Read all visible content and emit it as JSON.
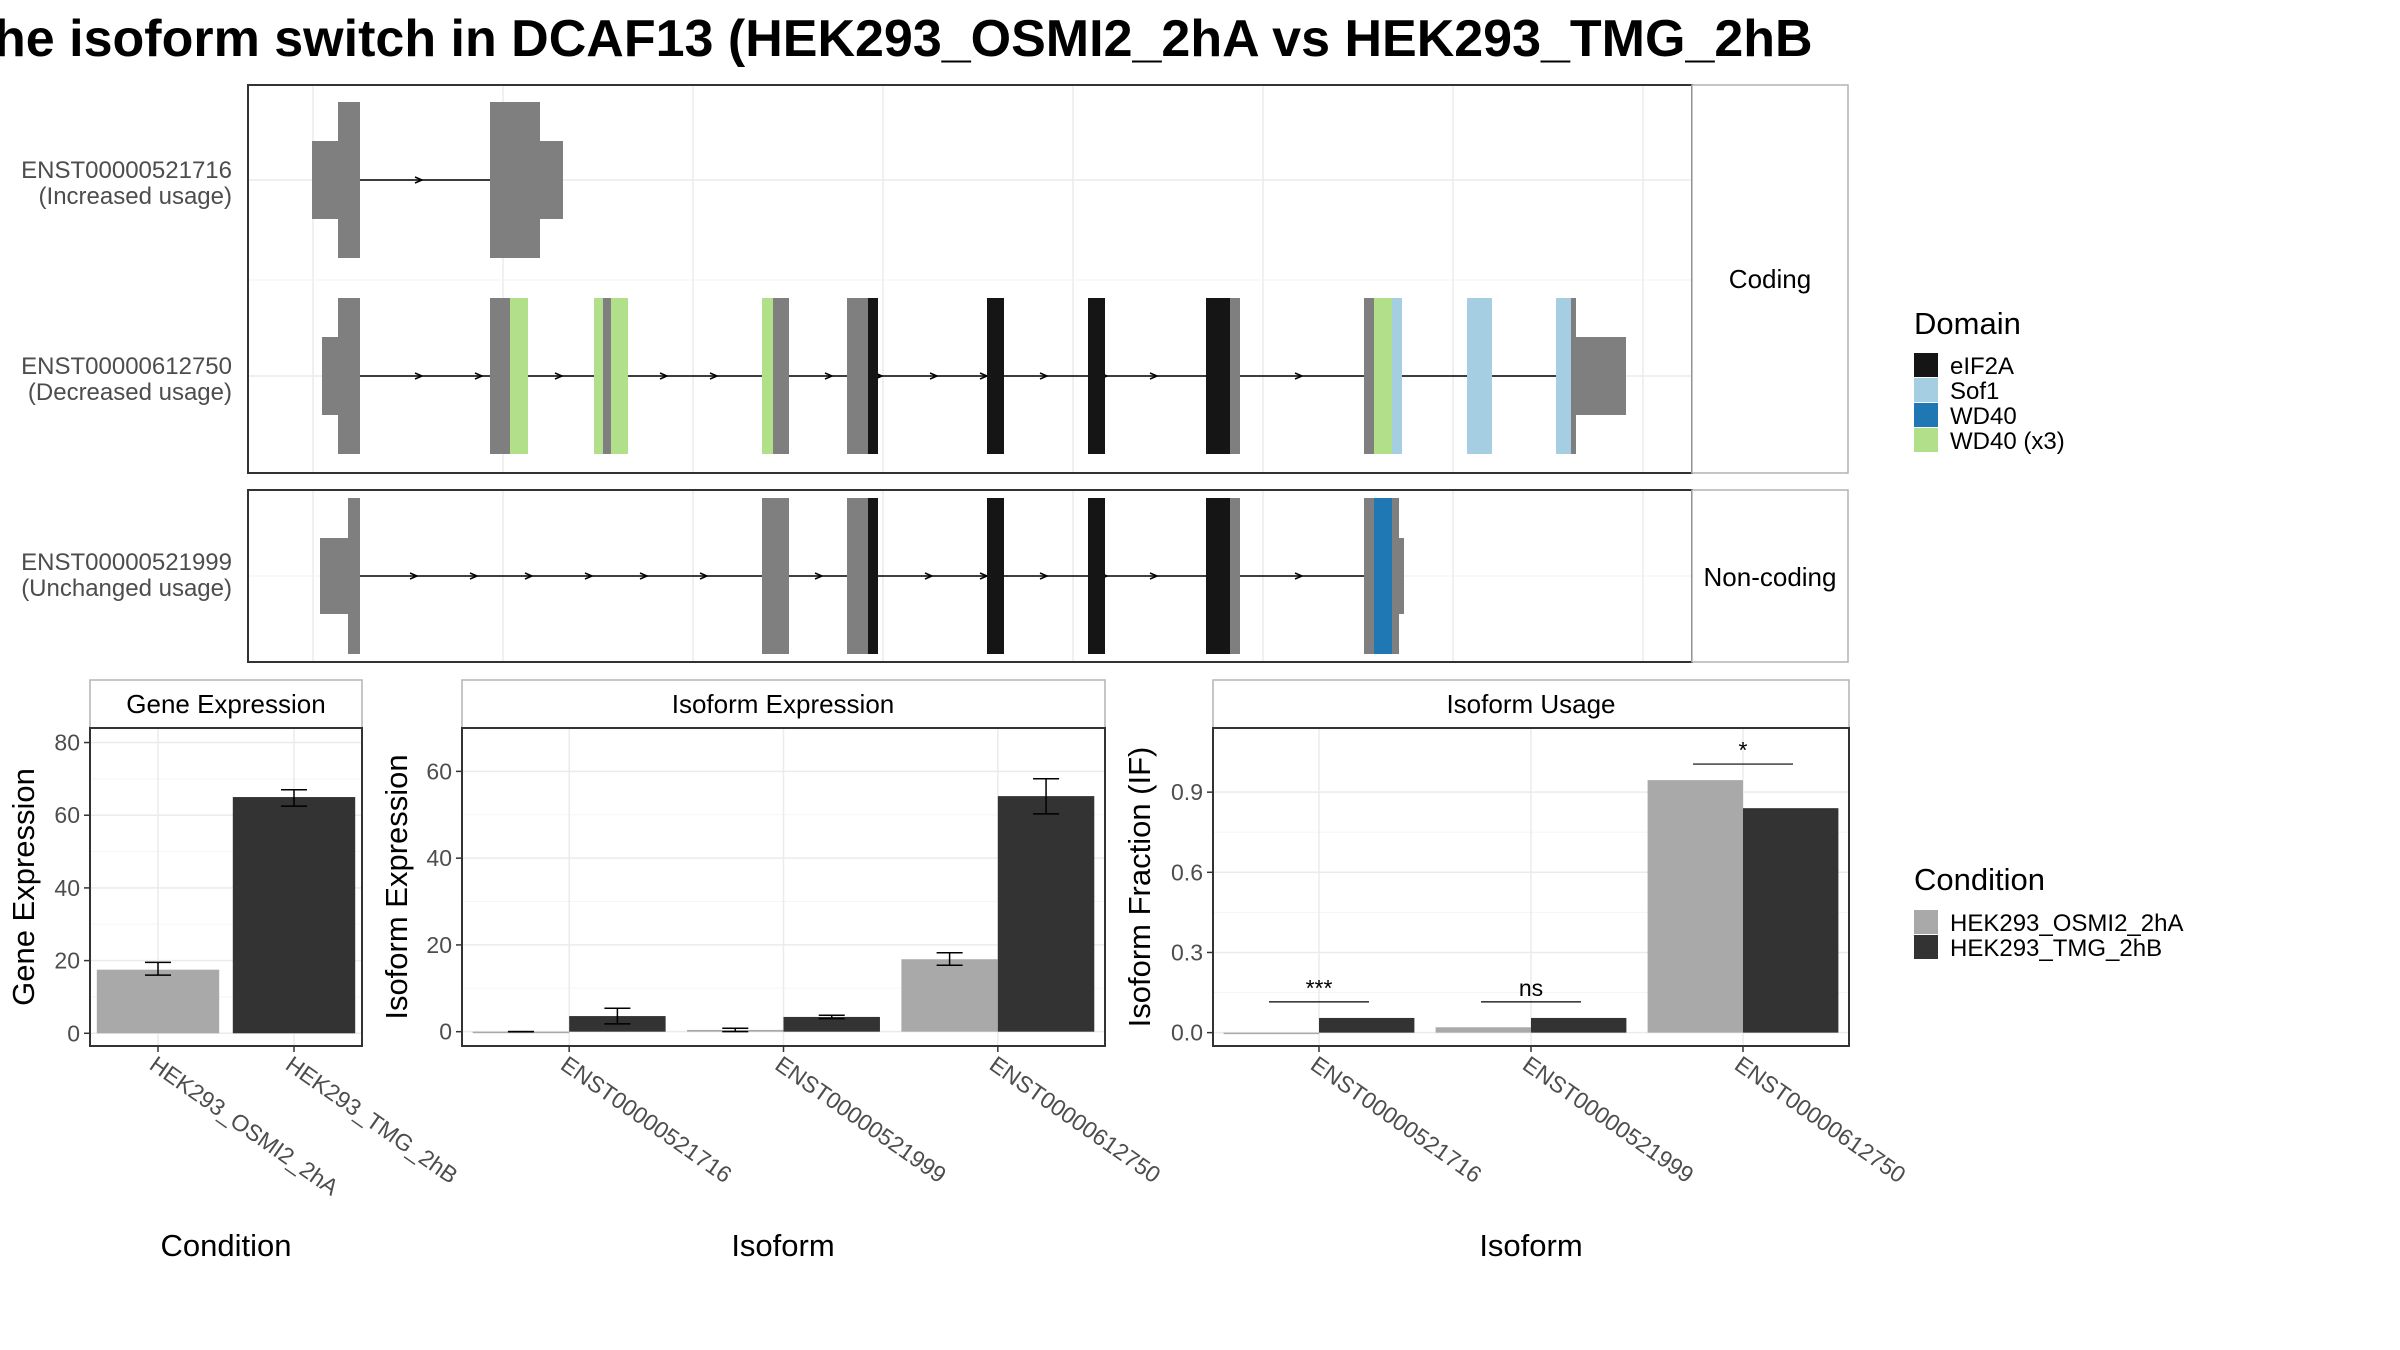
{
  "title": "he isoform switch in DCAF13 (HEK293_OSMI2_2hA vs HEK293_TMG_2hB",
  "structure": {
    "facets": [
      "Coding",
      "Non-coding"
    ],
    "transcripts": [
      {
        "id": "ENST00000521716",
        "usage": "(Increased usage)",
        "facet": "Coding"
      },
      {
        "id": "ENST00000612750",
        "usage": "(Decreased usage)",
        "facet": "Coding"
      },
      {
        "id": "ENST00000521999",
        "usage": "(Unchanged usage)",
        "facet": "Non-coding"
      }
    ],
    "domain_legend": {
      "title": "Domain",
      "items": [
        {
          "label": "eIF2A",
          "color": "#151515"
        },
        {
          "label": "Sof1",
          "color": "#a6cee3"
        },
        {
          "label": "WD40",
          "color": "#1f78b4"
        },
        {
          "label": "WD40 (x3)",
          "color": "#b2df8a"
        }
      ]
    },
    "utr_color": "#7f7f7f"
  },
  "condition_legend": {
    "title": "Condition",
    "items": [
      {
        "label": "HEK293_OSMI2_2hA",
        "color": "#a9a9a9"
      },
      {
        "label": "HEK293_TMG_2hB",
        "color": "#333333"
      }
    ]
  },
  "chart_data": [
    {
      "type": "bar",
      "title": "Gene Expression",
      "xlabel": "Condition",
      "ylabel": "Gene Expression",
      "categories": [
        "HEK293_OSMI2_2hA",
        "HEK293_TMG_2hB"
      ],
      "values": [
        17.5,
        65
      ],
      "errors": [
        [
          16,
          19.5
        ],
        [
          62.5,
          67
        ]
      ],
      "colors": [
        "#a9a9a9",
        "#333333"
      ],
      "ylim": [
        -3.5,
        84
      ],
      "yticks": [
        0,
        20,
        40,
        60,
        80
      ],
      "grid": true
    },
    {
      "type": "bar",
      "title": "Isoform Expression",
      "xlabel": "Isoform",
      "ylabel": "Isoform Expression",
      "categories": [
        "ENST00000521716",
        "ENST00000521999",
        "ENST00000612750"
      ],
      "series": [
        {
          "name": "HEK293_OSMI2_2hA",
          "values": [
            0,
            0.4,
            16.7
          ],
          "errors": [
            [
              0,
              0
            ],
            [
              0,
              0.8
            ],
            [
              15.3,
              18.2
            ]
          ]
        },
        {
          "name": "HEK293_TMG_2hB",
          "values": [
            3.6,
            3.4,
            54.3
          ],
          "errors": [
            [
              1.8,
              5.4
            ],
            [
              3,
              3.8
            ],
            [
              50.2,
              58.3
            ]
          ]
        }
      ],
      "ylim": [
        -3.3,
        70
      ],
      "yticks": [
        0,
        20,
        40,
        60
      ],
      "grid": true
    },
    {
      "type": "bar",
      "title": "Isoform Usage",
      "xlabel": "Isoform",
      "ylabel": "Isoform Fraction (IF)",
      "categories": [
        "ENST00000521716",
        "ENST00000521999",
        "ENST00000612750"
      ],
      "series": [
        {
          "name": "HEK293_OSMI2_2hA",
          "values": [
            0,
            0.02,
            0.945
          ]
        },
        {
          "name": "HEK293_TMG_2hB",
          "values": [
            0.055,
            0.055,
            0.84
          ]
        }
      ],
      "significance": [
        "***",
        "ns",
        "*"
      ],
      "ylim": [
        -0.05,
        1.14
      ],
      "yticks": [
        0.0,
        0.3,
        0.6,
        0.9
      ],
      "ytick_labels": [
        "0.0",
        "0.3",
        "0.6",
        "0.9"
      ],
      "grid": true
    }
  ]
}
